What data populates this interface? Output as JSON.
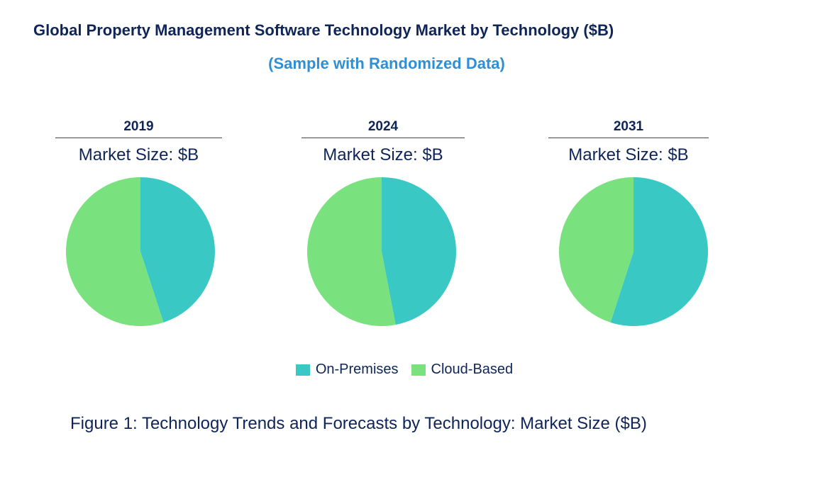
{
  "chart_data": {
    "type": "pie",
    "title": "Global Property Management Software Technology Market by Technology ($B)",
    "subtitle": "(Sample with Randomized Data)",
    "legend": [
      "On-Premises",
      "Cloud-Based"
    ],
    "legend_placement": "bottom",
    "colors": {
      "On-Premises": "#3ac8c4",
      "Cloud-Based": "#7ae17f"
    },
    "charts": [
      {
        "year": "2019",
        "label": "Market Size: $B",
        "values": [
          45,
          55
        ]
      },
      {
        "year": "2024",
        "label": "Market Size: $B",
        "values": [
          47,
          53
        ]
      },
      {
        "year": "2031",
        "label": "Market Size: $B",
        "values": [
          55,
          45
        ]
      }
    ]
  },
  "caption": "Figure 1: Technology Trends and Forecasts by Technology: Market Size ($B)"
}
